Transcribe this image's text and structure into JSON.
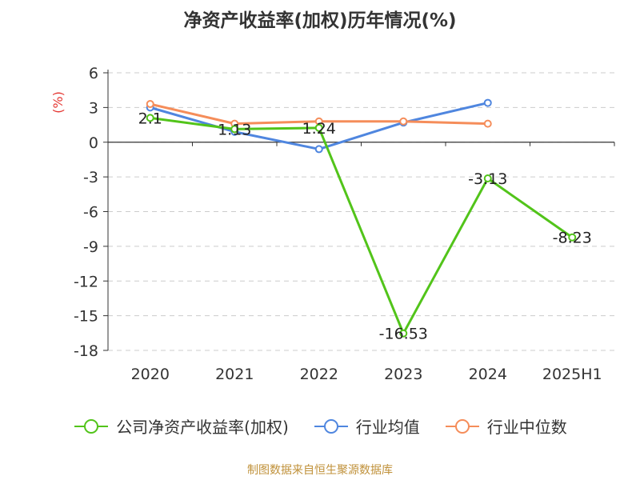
{
  "chart_data": {
    "type": "line",
    "title": "净资产收益率(加权)历年情况(%)",
    "ylabel": "(%)",
    "xlabel": "",
    "categories": [
      "2020",
      "2021",
      "2022",
      "2023",
      "2024",
      "2025H1"
    ],
    "yticks": [
      6,
      3,
      0,
      -3,
      -6,
      -9,
      -12,
      -15,
      -18
    ],
    "ylim": [
      -18,
      6
    ],
    "grid": true,
    "legend_position": "bottom",
    "series": [
      {
        "name": "公司净资产收益率(加权)",
        "color": "#52c41a",
        "values": [
          2.1,
          1.13,
          1.24,
          -16.53,
          -3.13,
          -8.23
        ],
        "labels": [
          "2.1",
          "1.13",
          "1.24",
          "-16.53",
          "-3.13",
          "-8.23"
        ]
      },
      {
        "name": "行业均值",
        "color": "#4f86df",
        "values": [
          3.0,
          0.9,
          -0.6,
          1.7,
          3.4,
          null
        ]
      },
      {
        "name": "行业中位数",
        "color": "#f58d5a",
        "values": [
          3.3,
          1.6,
          1.8,
          1.8,
          1.6,
          null
        ]
      }
    ]
  },
  "footer": {
    "source": "制图数据来自恒生聚源数据库"
  }
}
